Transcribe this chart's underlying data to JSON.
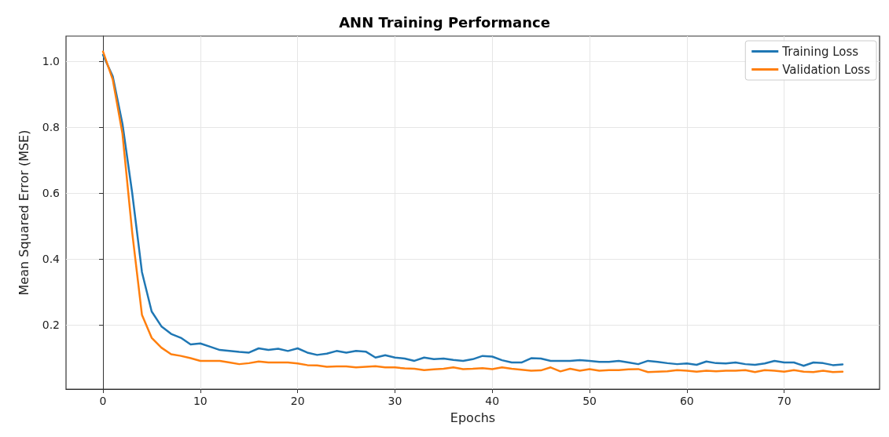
{
  "chart_data": {
    "type": "line",
    "title": "ANN Training Performance",
    "xlabel": "Epochs",
    "ylabel": "Mean Squared Error (MSE)",
    "x": [
      0,
      1,
      2,
      3,
      4,
      5,
      6,
      7,
      8,
      9,
      10,
      11,
      12,
      13,
      14,
      15,
      16,
      17,
      18,
      19,
      20,
      21,
      22,
      23,
      24,
      25,
      26,
      27,
      28,
      29,
      30,
      31,
      32,
      33,
      34,
      35,
      36,
      37,
      38,
      39,
      40,
      41,
      42,
      43,
      44,
      45,
      46,
      47,
      48,
      49,
      50,
      51,
      52,
      53,
      54,
      55,
      56,
      57,
      58,
      59,
      60,
      61,
      62,
      63,
      64,
      65,
      66,
      67,
      68,
      69,
      70,
      71,
      72,
      73,
      74,
      75,
      76
    ],
    "series": [
      {
        "name": "Training Loss",
        "color": "#1f77b4",
        "values": [
          1.02,
          0.955,
          0.81,
          0.6,
          0.36,
          0.24,
          0.195,
          0.172,
          0.16,
          0.14,
          0.143,
          0.133,
          0.123,
          0.12,
          0.117,
          0.115,
          0.128,
          0.123,
          0.127,
          0.12,
          0.128,
          0.115,
          0.108,
          0.112,
          0.12,
          0.115,
          0.12,
          0.118,
          0.1,
          0.107,
          0.1,
          0.097,
          0.09,
          0.1,
          0.095,
          0.097,
          0.093,
          0.09,
          0.095,
          0.105,
          0.103,
          0.092,
          0.085,
          0.085,
          0.098,
          0.097,
          0.09,
          0.09,
          0.09,
          0.092,
          0.09,
          0.087,
          0.087,
          0.09,
          0.085,
          0.08,
          0.09,
          0.087,
          0.083,
          0.08,
          0.082,
          0.078,
          0.088,
          0.083,
          0.082,
          0.085,
          0.08,
          0.078,
          0.082,
          0.09,
          0.085,
          0.085,
          0.075,
          0.085,
          0.083,
          0.077,
          0.079
        ]
      },
      {
        "name": "Validation Loss",
        "color": "#ff7f0e",
        "values": [
          1.03,
          0.945,
          0.78,
          0.48,
          0.23,
          0.16,
          0.13,
          0.11,
          0.105,
          0.098,
          0.09,
          0.09,
          0.09,
          0.085,
          0.08,
          0.083,
          0.088,
          0.085,
          0.085,
          0.085,
          0.082,
          0.077,
          0.076,
          0.072,
          0.073,
          0.073,
          0.07,
          0.072,
          0.074,
          0.07,
          0.07,
          0.067,
          0.066,
          0.062,
          0.064,
          0.066,
          0.07,
          0.065,
          0.066,
          0.068,
          0.065,
          0.07,
          0.066,
          0.063,
          0.06,
          0.061,
          0.07,
          0.058,
          0.066,
          0.06,
          0.065,
          0.06,
          0.062,
          0.062,
          0.064,
          0.065,
          0.056,
          0.057,
          0.058,
          0.062,
          0.06,
          0.057,
          0.06,
          0.058,
          0.06,
          0.06,
          0.062,
          0.056,
          0.062,
          0.06,
          0.057,
          0.062,
          0.057,
          0.056,
          0.06,
          0.056,
          0.057
        ]
      }
    ],
    "xlim": [
      -3.8,
      79.8
    ],
    "xticks": [
      0,
      10,
      20,
      30,
      40,
      50,
      60,
      70
    ],
    "ylim": [
      0.004,
      1.077
    ],
    "yticks": [
      {
        "value": 0.2,
        "label": "0.2"
      },
      {
        "value": 0.4,
        "label": "0.4"
      },
      {
        "value": 0.6,
        "label": "0.6"
      },
      {
        "value": 0.8,
        "label": "0.8"
      },
      {
        "value": 1,
        "label": "1.0"
      }
    ],
    "grid": true,
    "legend": "top right",
    "marker": "none",
    "line_style": "solid"
  }
}
